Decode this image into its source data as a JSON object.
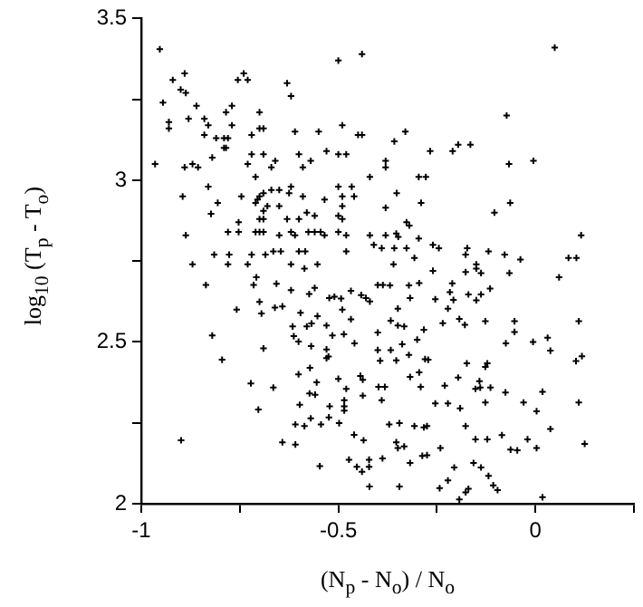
{
  "chart_data": {
    "type": "scatter",
    "xlabel": "(N$_{p}$ - N$_{o}$) / N$_{o}$",
    "ylabel": "log$_{10}$ (T$_{p}$ - T$_{o}$)",
    "xlim": [
      -1,
      0.25
    ],
    "xticks": [
      -1,
      {
        "value": -0.75,
        "label": null
      },
      -0.5,
      {
        "value": -0.25,
        "label": null
      },
      0,
      {
        "value": 0.25,
        "label": null
      }
    ],
    "ylim": [
      2,
      3.5
    ],
    "yticks": [
      2,
      {
        "value": 2.25,
        "label": null
      },
      2.5,
      {
        "value": 2.75,
        "label": null
      },
      3,
      {
        "value": 3.25,
        "label": null
      },
      3.5
    ],
    "marker": "cross",
    "series": [
      {
        "color": "#000000",
        "x": [
          -0.953,
          -0.5,
          -0.44,
          -0.92,
          -0.89,
          -0.74,
          -0.755,
          -0.73,
          -0.63,
          -0.9,
          -0.887,
          -0.945,
          -0.86,
          -0.62,
          -0.77,
          -0.785,
          -0.7,
          -0.88,
          -0.84,
          -0.83,
          -0.93,
          -0.93,
          -0.77,
          -0.7,
          -0.69,
          -0.49,
          -0.84,
          -0.81,
          -0.79,
          -0.78,
          -0.72,
          -0.61,
          -0.55,
          -0.45,
          -0.44,
          -0.79,
          -0.785,
          -0.72,
          -0.69,
          -0.66,
          -0.67,
          -0.6,
          -0.57,
          -0.53,
          -0.5,
          -0.48,
          -0.38,
          -0.38,
          -0.965,
          -0.89,
          -0.87,
          -0.856,
          -0.82,
          -0.73,
          -0.71,
          -0.59,
          -0.42,
          -0.83,
          -0.895,
          -0.806,
          -0.746,
          -0.7,
          -0.69,
          -0.705,
          -0.71,
          -0.69,
          -0.67,
          -0.65,
          -0.62,
          -0.625,
          -0.68,
          -0.65,
          -0.59,
          -0.535,
          -0.5,
          -0.49,
          -0.466,
          -0.49,
          -0.46,
          -0.38,
          -0.823,
          -0.753,
          -0.7,
          -0.69,
          -0.63,
          -0.6,
          -0.58,
          -0.56,
          -0.5,
          -0.49,
          -0.887,
          -0.78,
          -0.753,
          -0.71,
          -0.7,
          -0.69,
          -0.65,
          -0.62,
          -0.61,
          -0.576,
          -0.56,
          -0.545,
          -0.535,
          -0.48,
          -0.5,
          -0.42,
          -0.38,
          -0.41,
          -0.39,
          -0.815,
          -0.777,
          -0.72,
          -0.685,
          -0.665,
          -0.646,
          -0.6,
          -0.584,
          -0.48,
          -0.87,
          -0.78,
          -0.73,
          -0.62,
          -0.553,
          0.049,
          -0.073,
          -0.358,
          -0.33,
          -0.267,
          -0.21,
          -0.196,
          -0.165,
          -0.067,
          -0.005,
          -0.296,
          -0.278,
          -0.352,
          -0.29,
          -0.064,
          -0.104,
          -0.327,
          -0.32,
          -0.353,
          -0.348,
          -0.358,
          -0.327,
          -0.296,
          -0.26,
          -0.245,
          -0.173,
          -0.177,
          -0.119,
          -0.078,
          -0.038,
          0.116,
          0.084,
          0.104,
          -0.36,
          -0.307,
          -0.15,
          -0.836,
          -0.715,
          -0.708,
          -0.7,
          -0.695,
          -0.657,
          -0.62,
          -0.661,
          -0.642,
          -0.758,
          -0.56,
          -0.574,
          -0.586,
          -0.523,
          -0.51,
          -0.493,
          -0.596,
          -0.553,
          -0.58,
          -0.568,
          -0.53,
          -0.49,
          -0.468,
          -0.442,
          -0.43,
          -0.42,
          -0.4,
          -0.387,
          -0.468,
          -0.616,
          -0.613,
          -0.601,
          -0.515,
          -0.486,
          -0.569,
          -0.53,
          -0.53,
          -0.525,
          -0.459,
          -0.4,
          -0.4,
          -0.394,
          -0.82,
          -0.795,
          -0.69,
          -0.601,
          -0.572,
          -0.555,
          -0.722,
          -0.665,
          -0.5,
          -0.48,
          -0.444,
          -0.438,
          -0.398,
          -0.382,
          -0.573,
          -0.559,
          -0.598,
          -0.522,
          -0.485,
          -0.485,
          -0.485,
          -0.438,
          -0.39,
          -0.703,
          -0.57,
          -0.544,
          -0.609,
          -0.586,
          -0.498,
          -0.524,
          -0.899,
          -0.642,
          -0.609,
          -0.46,
          -0.436,
          -0.547,
          -0.473,
          -0.453,
          -0.44,
          -0.422,
          -0.422,
          -0.388,
          -0.421,
          -0.26,
          -0.177,
          -0.15,
          -0.138,
          -0.066,
          0.06,
          -0.369,
          -0.321,
          -0.295,
          -0.211,
          -0.217,
          -0.208,
          -0.254,
          -0.17,
          -0.15,
          -0.138,
          -0.115,
          -0.318,
          -0.349,
          -0.222,
          -0.367,
          -0.349,
          -0.333,
          -0.193,
          -0.179,
          -0.235,
          -0.283,
          -0.3,
          -0.127,
          -0.053,
          -0.053,
          -0.075,
          -0.006,
          0.031,
          0.038,
          -0.338,
          -0.367,
          -0.353,
          -0.321,
          -0.28,
          -0.272,
          0.103,
          0.118,
          0.11,
          -0.174,
          -0.122,
          -0.127,
          -0.318,
          -0.295,
          -0.196,
          -0.142,
          -0.152,
          -0.14,
          -0.114,
          -0.291,
          -0.23,
          -0.076,
          0.018,
          -0.254,
          -0.222,
          -0.191,
          -0.127,
          -0.03,
          0.003,
          0.11,
          -0.371,
          -0.345,
          -0.307,
          -0.283,
          -0.275,
          -0.177,
          0.038,
          -0.353,
          -0.349,
          -0.333,
          -0.241,
          -0.152,
          -0.122,
          -0.085,
          -0.063,
          -0.046,
          -0.02,
          0.003,
          0.125,
          -0.318,
          -0.287,
          -0.275,
          -0.206,
          -0.157,
          -0.138,
          -0.119,
          -0.222,
          -0.243,
          -0.345,
          -0.17,
          -0.177,
          -0.193,
          -0.107,
          -0.096,
          0.018
        ],
        "values": [
          3.405,
          3.37,
          3.39,
          3.31,
          3.33,
          3.33,
          3.31,
          3.31,
          3.3,
          3.28,
          3.27,
          3.24,
          3.23,
          3.26,
          3.23,
          3.21,
          3.21,
          3.19,
          3.19,
          3.17,
          3.18,
          3.16,
          3.17,
          3.16,
          3.16,
          3.17,
          3.14,
          3.13,
          3.13,
          3.13,
          3.14,
          3.15,
          3.15,
          3.14,
          3.14,
          3.1,
          3.1,
          3.08,
          3.08,
          3.06,
          3.04,
          3.08,
          3.06,
          3.09,
          3.08,
          3.08,
          3.06,
          3.04,
          3.05,
          3.04,
          3.05,
          3.04,
          3.07,
          3.05,
          3.01,
          3.04,
          3.01,
          2.98,
          2.95,
          2.93,
          2.95,
          2.95,
          2.96,
          2.94,
          2.93,
          2.905,
          2.97,
          2.97,
          2.98,
          2.96,
          2.92,
          2.92,
          2.95,
          2.94,
          2.98,
          2.95,
          2.98,
          2.92,
          2.95,
          2.915,
          2.896,
          2.87,
          2.88,
          2.88,
          2.88,
          2.88,
          2.9,
          2.89,
          2.89,
          2.88,
          2.83,
          2.84,
          2.84,
          2.84,
          2.84,
          2.84,
          2.83,
          2.84,
          2.83,
          2.84,
          2.84,
          2.84,
          2.83,
          2.83,
          2.84,
          2.83,
          2.83,
          2.8,
          2.79,
          2.77,
          2.77,
          2.77,
          2.77,
          2.78,
          2.78,
          2.78,
          2.78,
          2.78,
          2.74,
          2.74,
          2.74,
          2.74,
          2.74,
          3.41,
          3.2,
          3.12,
          3.15,
          3.09,
          3.09,
          3.11,
          3.11,
          3.05,
          3.06,
          3.01,
          3.01,
          2.96,
          2.93,
          2.93,
          2.9,
          2.87,
          2.86,
          2.835,
          2.825,
          2.79,
          2.79,
          2.82,
          2.8,
          2.79,
          2.79,
          2.77,
          2.78,
          2.77,
          2.755,
          2.83,
          2.76,
          2.76,
          2.74,
          2.76,
          2.74,
          2.676,
          2.676,
          2.7,
          2.624,
          2.588,
          2.68,
          2.66,
          2.606,
          2.61,
          2.6,
          2.667,
          2.648,
          2.727,
          2.636,
          2.64,
          2.634,
          2.59,
          2.58,
          2.548,
          2.557,
          2.551,
          2.6,
          2.658,
          2.645,
          2.636,
          2.625,
          2.676,
          2.676,
          2.57,
          2.548,
          2.518,
          2.501,
          2.52,
          2.524,
          2.487,
          2.477,
          2.45,
          2.455,
          2.496,
          2.529,
          2.475,
          2.442,
          2.52,
          2.445,
          2.48,
          2.4,
          2.42,
          2.375,
          2.372,
          2.359,
          2.386,
          2.355,
          2.395,
          2.383,
          2.361,
          2.361,
          2.341,
          2.337,
          2.306,
          2.301,
          2.32,
          2.301,
          2.288,
          2.334,
          2.32,
          2.291,
          2.264,
          2.245,
          2.245,
          2.24,
          2.249,
          2.267,
          2.196,
          2.19,
          2.183,
          2.213,
          2.196,
          2.116,
          2.136,
          2.114,
          2.099,
          2.136,
          2.114,
          2.14,
          2.053,
          2.72,
          2.716,
          2.727,
          2.713,
          2.713,
          2.7,
          2.675,
          2.675,
          2.682,
          2.681,
          2.654,
          2.63,
          2.632,
          2.647,
          2.629,
          2.647,
          2.665,
          2.636,
          2.603,
          2.603,
          2.566,
          2.551,
          2.548,
          2.571,
          2.553,
          2.558,
          2.538,
          2.507,
          2.564,
          2.564,
          2.531,
          2.496,
          2.5,
          2.513,
          2.473,
          2.493,
          2.475,
          2.443,
          2.46,
          2.447,
          2.445,
          2.441,
          2.456,
          2.564,
          2.434,
          2.434,
          2.423,
          2.392,
          2.406,
          2.39,
          2.379,
          2.355,
          2.359,
          2.359,
          2.361,
          2.365,
          2.344,
          2.346,
          2.31,
          2.31,
          2.295,
          2.313,
          2.313,
          2.286,
          2.313,
          2.245,
          2.249,
          2.24,
          2.236,
          2.24,
          2.24,
          2.231,
          2.19,
          2.172,
          2.177,
          2.172,
          2.199,
          2.199,
          2.212,
          2.167,
          2.165,
          2.199,
          2.172,
          2.185,
          2.126,
          2.148,
          2.15,
          2.112,
          2.126,
          2.112,
          2.086,
          2.072,
          2.048,
          2.053,
          2.046,
          2.035,
          2.013,
          2.057,
          2.042,
          2.02
        ]
      }
    ]
  }
}
